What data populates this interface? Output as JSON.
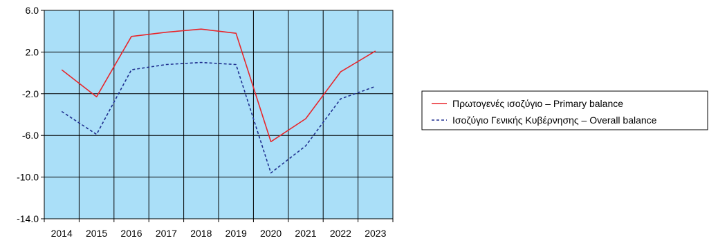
{
  "chart_data": {
    "type": "line",
    "categories": [
      "2014",
      "2015",
      "2016",
      "2017",
      "2018",
      "2019",
      "2020",
      "2021",
      "2022",
      "2023"
    ],
    "y_ticks": [
      "6.0",
      "2.0",
      "-2.0",
      "-6.0",
      "-10.0",
      "-14.0"
    ],
    "ylim": [
      -14,
      6
    ],
    "grid": true,
    "legend_position": "right",
    "plot_background": "#aadff8",
    "series": [
      {
        "name": "Πρωτογενές ισοζύγιο – Primary balance",
        "color": "#e8262b",
        "dash": "solid",
        "values": [
          0.3,
          -2.3,
          3.5,
          3.9,
          4.2,
          3.8,
          -6.6,
          -4.4,
          0.1,
          2.1
        ]
      },
      {
        "name": "Ισοζύγιο Γενικής Κυβέρνησης – Overall balance",
        "color": "#1f2f8f",
        "dash": "dashed",
        "values": [
          -3.7,
          -5.9,
          0.3,
          0.8,
          1.0,
          0.8,
          -9.6,
          -7.0,
          -2.5,
          -1.3
        ]
      }
    ]
  }
}
